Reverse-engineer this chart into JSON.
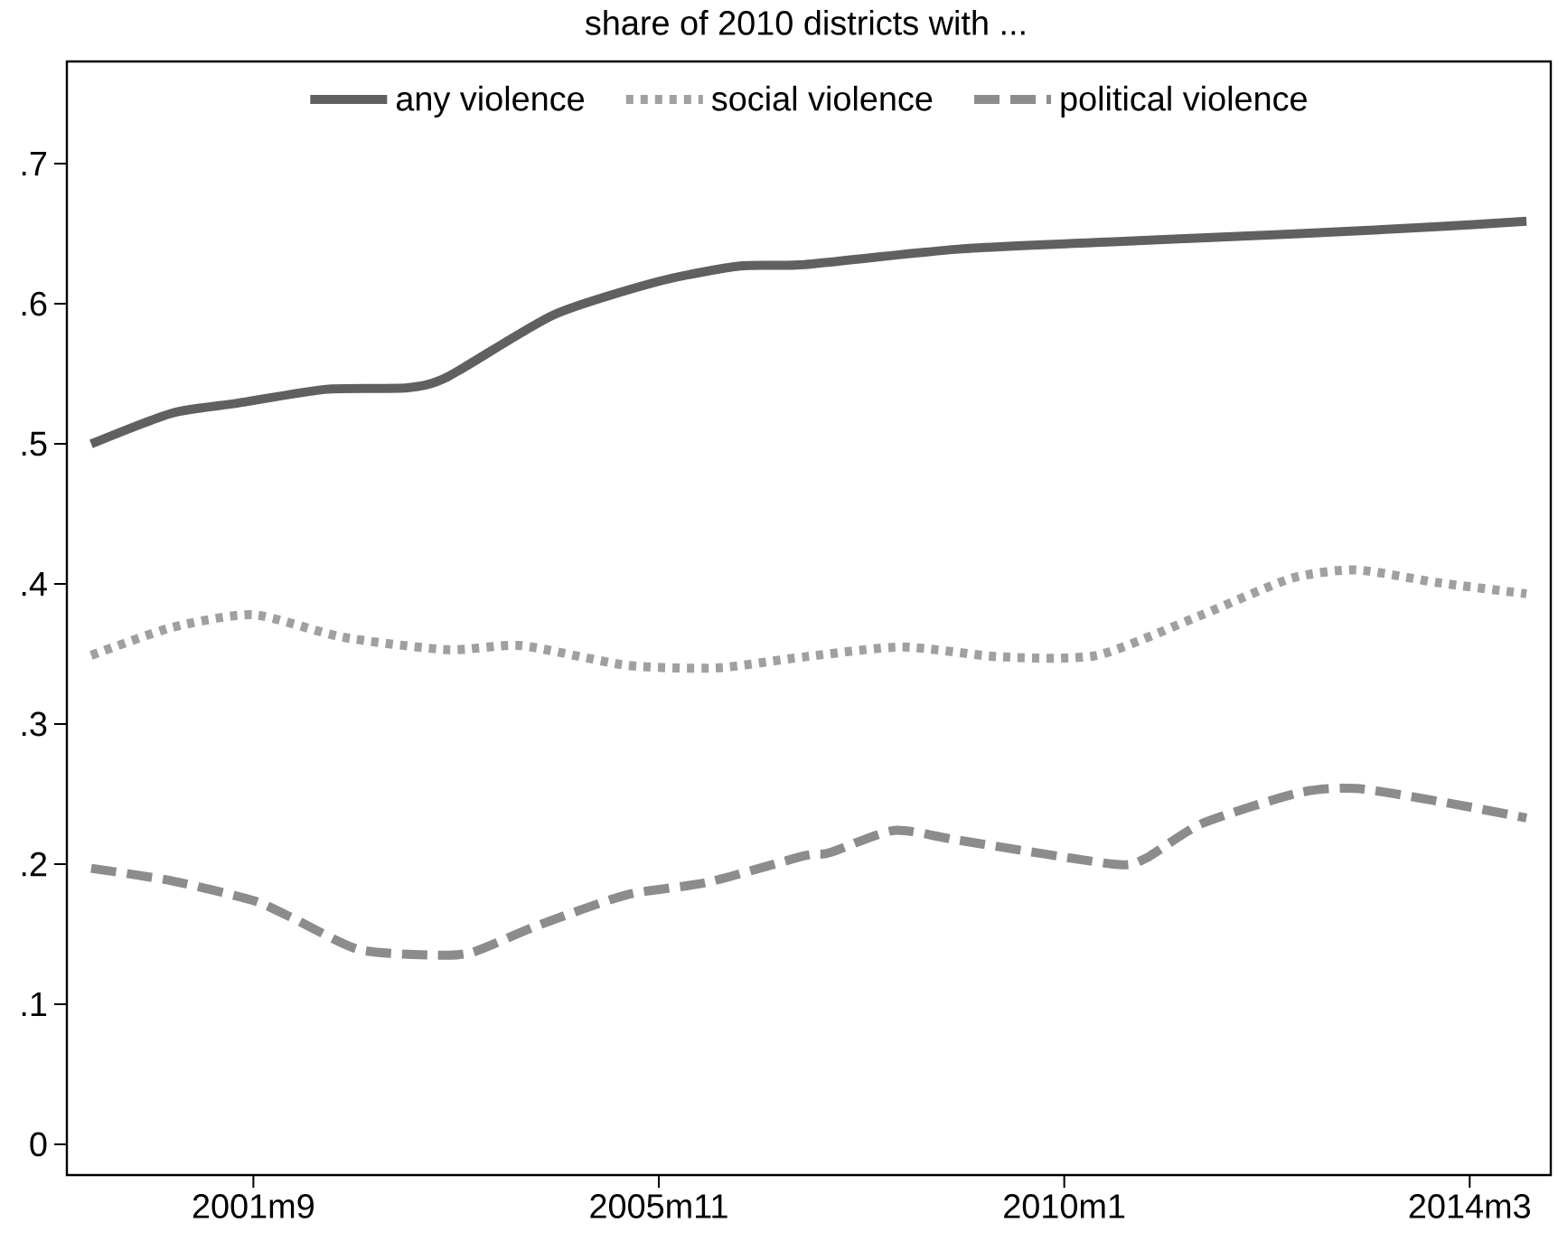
{
  "chart_data": {
    "type": "line",
    "title": "share of 2010 districts with ...",
    "xlim": [
      "1999-10",
      "2015-01"
    ],
    "ylim": [
      -0.022,
      0.773
    ],
    "xticks": [
      {
        "value": "2001-09",
        "label": "2001m9"
      },
      {
        "value": "2005-11",
        "label": "2005m11"
      },
      {
        "value": "2010-01",
        "label": "2010m1"
      },
      {
        "value": "2014-03",
        "label": "2014m3"
      }
    ],
    "yticks": [
      0,
      {
        "value": 0.1,
        "label": ".1"
      },
      {
        "value": 0.2,
        "label": ".2"
      },
      {
        "value": 0.3,
        "label": ".3"
      },
      {
        "value": 0.4,
        "label": ".4"
      },
      {
        "value": 0.5,
        "label": ".5"
      },
      {
        "value": 0.6,
        "label": ".6"
      },
      {
        "value": 0.7,
        "label": ".7"
      }
    ],
    "legend": "top",
    "marker": "none",
    "series": [
      {
        "name": "any violence",
        "color": "#606060",
        "line_style": "solid",
        "x": [
          "2000-01",
          "2000-11",
          "2001-07",
          "2002-06",
          "2003-04",
          "2003-09",
          "2004-10",
          "2005-11",
          "2006-09",
          "2007-05",
          "2008-12",
          "2010-10",
          "2012-06",
          "2013-11",
          "2014-10"
        ],
        "values": [
          0.5,
          0.522,
          0.529,
          0.539,
          0.54,
          0.548,
          0.592,
          0.616,
          0.627,
          0.628,
          0.639,
          0.645,
          0.65,
          0.655,
          0.659
        ]
      },
      {
        "name": "social violence",
        "color": "#a0a0a0",
        "line_style": "dotted",
        "x": [
          "2000-01",
          "2000-11",
          "2001-09",
          "2002-08",
          "2003-09",
          "2004-06",
          "2005-07",
          "2006-06",
          "2007-05",
          "2008-05",
          "2009-05",
          "2010-05",
          "2011-06",
          "2012-05",
          "2013-01",
          "2013-11",
          "2014-10"
        ],
        "values": [
          0.349,
          0.369,
          0.378,
          0.362,
          0.353,
          0.356,
          0.342,
          0.34,
          0.348,
          0.355,
          0.348,
          0.349,
          0.378,
          0.404,
          0.41,
          0.401,
          0.393
        ]
      },
      {
        "name": "political violence",
        "color": "#8c8c8c",
        "line_style": "dashed",
        "x": [
          "2000-01",
          "2000-11",
          "2001-09",
          "2002-02",
          "2002-10",
          "2003-07",
          "2003-12",
          "2004-08",
          "2005-07",
          "2006-05",
          "2007-05",
          "2007-08",
          "2008-04",
          "2008-12",
          "2010-07",
          "2010-11",
          "2011-06",
          "2012-06",
          "2013-01",
          "2013-11",
          "2014-10"
        ],
        "values": [
          0.197,
          0.188,
          0.174,
          0.161,
          0.139,
          0.135,
          0.137,
          0.156,
          0.178,
          0.187,
          0.206,
          0.208,
          0.224,
          0.217,
          0.2,
          0.204,
          0.229,
          0.251,
          0.254,
          0.245,
          0.233
        ]
      }
    ]
  }
}
